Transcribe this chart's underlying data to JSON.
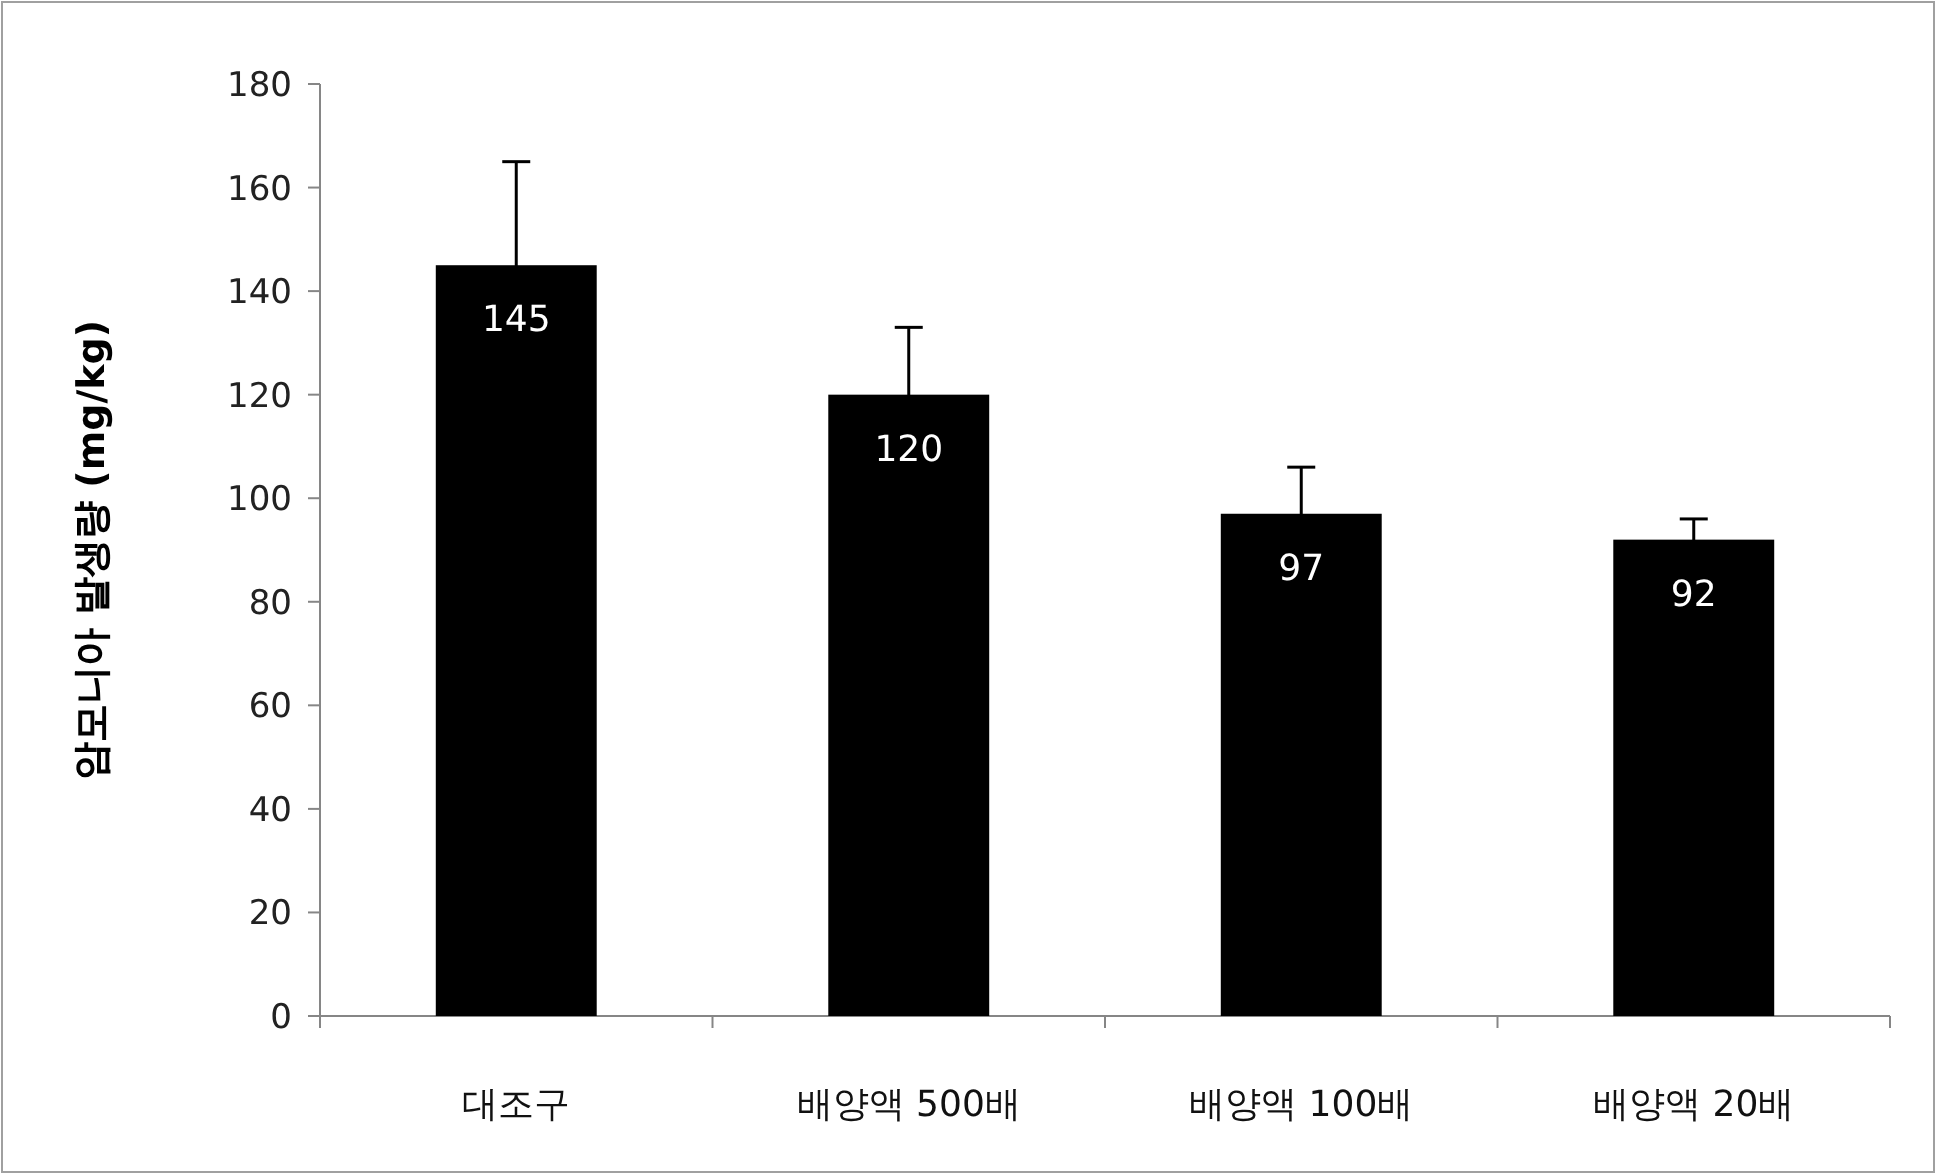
{
  "chart_data": {
    "type": "bar",
    "ylabel": "암모니아 발생량 (mg/kg)",
    "categories": [
      "대조구",
      "배양액 500배",
      "배양액 100배",
      "배양액 20배"
    ],
    "values": [
      145,
      120,
      97,
      92
    ],
    "errors": [
      20,
      13,
      9,
      4
    ],
    "color": "#000000",
    "ylim": [
      0,
      180
    ],
    "yticks": [
      0,
      20,
      40,
      60,
      80,
      100,
      120,
      140,
      160,
      180
    ],
    "data_labels": true
  }
}
